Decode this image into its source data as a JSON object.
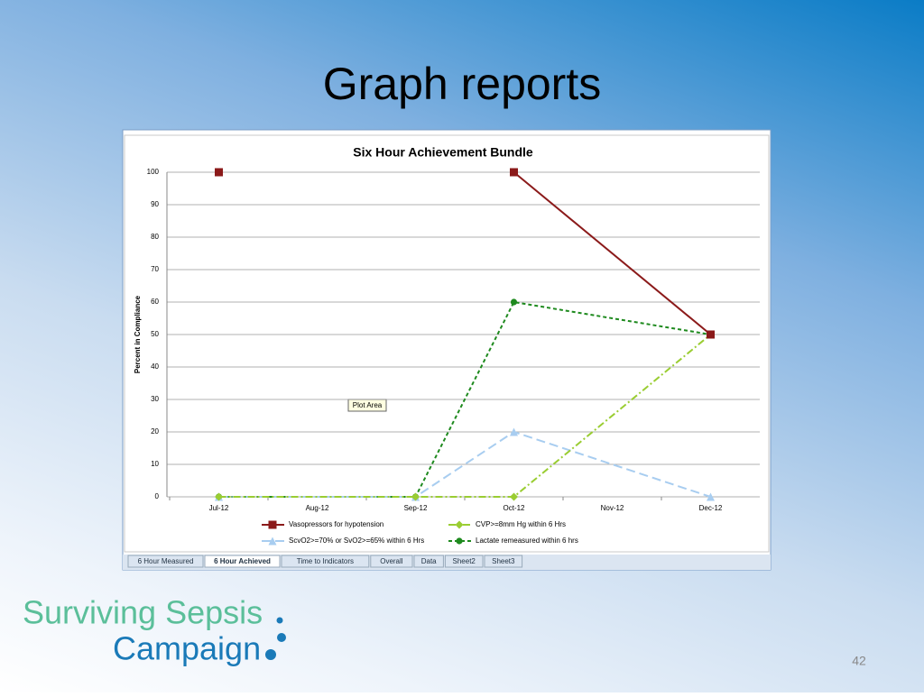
{
  "slide_title": "Graph reports",
  "sheet_tabs": [
    "6 Hour Measured",
    "6 Hour Achieved",
    "Time to Indicators",
    "Overall",
    "Data",
    "Sheet2",
    "Sheet3"
  ],
  "tooltip": "Plot Area",
  "logo": {
    "line1": "Surviving Sepsis",
    "line2": "Campaign"
  },
  "page_number": "42",
  "chart_data": {
    "type": "line",
    "title": "Six Hour Achievement Bundle",
    "y_label": "Percent in Compliance",
    "categories": [
      "Jul-12",
      "Aug-12",
      "Sep-12",
      "Oct-12",
      "Nov-12",
      "Dec-12"
    ],
    "ylim": [
      0,
      100
    ],
    "yticks": [
      0,
      10,
      20,
      30,
      40,
      50,
      60,
      70,
      80,
      90,
      100
    ],
    "grid": true,
    "series": [
      {
        "name": "Vasopressors for hypotension",
        "color": "#8b1a1a",
        "marker": "square",
        "dash": "solid",
        "x": [
          "Jul-12",
          "Sep-12",
          "Oct-12",
          "Dec-12"
        ],
        "values": [
          100,
          null,
          100,
          50
        ]
      },
      {
        "name": "CVP>=8mm Hg  within 6 Hrs",
        "color": "#9acd32",
        "marker": "diamond",
        "dash": "dashdot",
        "x": [
          "Jul-12",
          "Sep-12",
          "Oct-12",
          "Dec-12"
        ],
        "values": [
          0,
          0,
          0,
          50
        ]
      },
      {
        "name": "ScvO2>=70% or SvO2>=65% within 6 Hrs",
        "color": "#a8cdf0",
        "marker": "triangle",
        "dash": "longdash",
        "x": [
          "Jul-12",
          "Sep-12",
          "Oct-12",
          "Dec-12"
        ],
        "values": [
          0,
          0,
          20,
          0
        ]
      },
      {
        "name": "Lactate remeasured within 6 hrs",
        "color": "#1e8a1e",
        "marker": "circle",
        "dash": "dashed",
        "x": [
          "Jul-12",
          "Sep-12",
          "Oct-12",
          "Dec-12"
        ],
        "values": [
          0,
          0,
          60,
          50
        ]
      }
    ]
  }
}
